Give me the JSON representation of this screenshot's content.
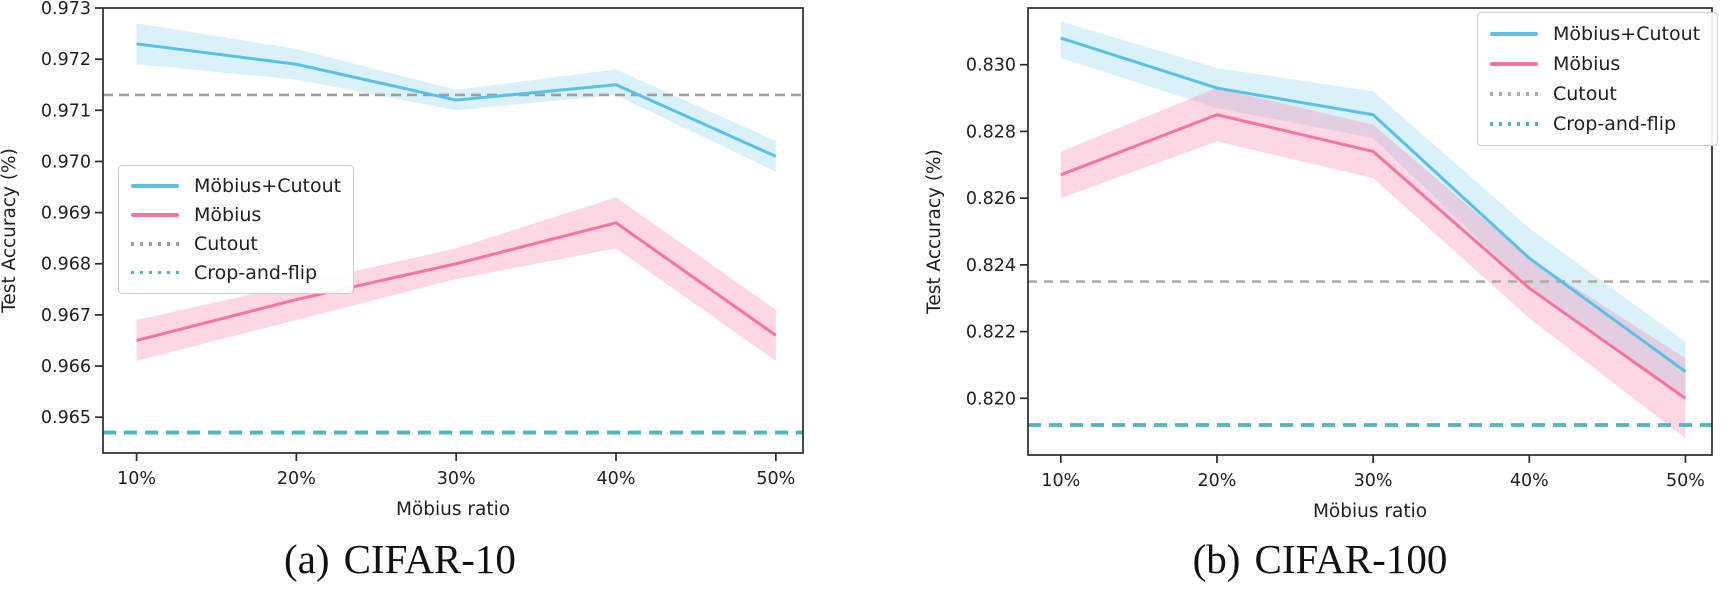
{
  "captions": [
    {
      "index": "(a)",
      "title": "CIFAR-10"
    },
    {
      "index": "(b)",
      "title": "CIFAR-100"
    }
  ],
  "chart_data": [
    {
      "type": "line",
      "title": "(a) CIFAR-10",
      "xlabel": "Möbius ratio",
      "ylabel": "Test Accuracy (%)",
      "x": [
        10,
        20,
        30,
        40,
        50
      ],
      "x_tick_labels": [
        "10%",
        "20%",
        "30%",
        "40%",
        "50%"
      ],
      "xlim": [
        7.9,
        51.7
      ],
      "ylim": [
        0.9643,
        0.973
      ],
      "yticks": [
        0.965,
        0.966,
        0.967,
        0.968,
        0.969,
        0.97,
        0.971,
        0.972,
        0.973
      ],
      "ytick_labels": [
        "0.965",
        "0.966",
        "0.967",
        "0.968",
        "0.969",
        "0.970",
        "0.971",
        "0.972",
        "0.973"
      ],
      "grid": false,
      "legend_position": "center-left",
      "series": [
        {
          "name": "Möbius+Cutout",
          "color": "#58c1e8",
          "band_opacity": 0.22,
          "values": [
            0.9723,
            0.9719,
            0.9712,
            0.9715,
            0.9701
          ],
          "band_high": [
            0.9727,
            0.9722,
            0.9714,
            0.9718,
            0.9704
          ],
          "band_low": [
            0.9719,
            0.9716,
            0.971,
            0.9713,
            0.9698
          ]
        },
        {
          "name": "Möbius",
          "color": "#f8749f",
          "band_opacity": 0.28,
          "values": [
            0.9665,
            0.9673,
            0.968,
            0.9688,
            0.9666
          ],
          "band_high": [
            0.9669,
            0.9676,
            0.9683,
            0.9693,
            0.9671
          ],
          "band_low": [
            0.9661,
            0.9669,
            0.9677,
            0.9683,
            0.9661
          ]
        }
      ],
      "hlines": [
        {
          "name": "Cutout",
          "value": 0.9713,
          "color": "#9e9e9e",
          "dash": "10 6",
          "width": 2.6
        },
        {
          "name": "Crop-and-flip",
          "value": 0.9647,
          "color": "#4cb8ba",
          "dash": "13 8",
          "width": 3.8
        }
      ]
    },
    {
      "type": "line",
      "title": "(b) CIFAR-100",
      "xlabel": "Möbius ratio",
      "ylabel": "Test Accuracy (%)",
      "x": [
        10,
        20,
        30,
        40,
        50
      ],
      "x_tick_labels": [
        "10%",
        "20%",
        "30%",
        "40%",
        "50%"
      ],
      "xlim": [
        7.9,
        51.7
      ],
      "ylim": [
        0.8183,
        0.8317
      ],
      "yticks": [
        0.82,
        0.822,
        0.824,
        0.826,
        0.828,
        0.83
      ],
      "ytick_labels": [
        "0.820",
        "0.822",
        "0.824",
        "0.826",
        "0.828",
        "0.830"
      ],
      "grid": false,
      "legend_position": "top-right",
      "series": [
        {
          "name": "Möbius+Cutout",
          "color": "#58c1e8",
          "band_opacity": 0.22,
          "values": [
            0.8308,
            0.8293,
            0.8285,
            0.8242,
            0.8208
          ],
          "band_high": [
            0.8313,
            0.8299,
            0.8292,
            0.8251,
            0.8217
          ],
          "band_low": [
            0.8302,
            0.8287,
            0.8278,
            0.8233,
            0.8199
          ]
        },
        {
          "name": "Möbius",
          "color": "#f8749f",
          "band_opacity": 0.28,
          "values": [
            0.8267,
            0.8285,
            0.8274,
            0.8233,
            0.82
          ],
          "band_high": [
            0.8274,
            0.8293,
            0.8282,
            0.8242,
            0.8212
          ],
          "band_low": [
            0.826,
            0.8277,
            0.8266,
            0.8224,
            0.8188
          ]
        }
      ],
      "hlines": [
        {
          "name": "Cutout",
          "value": 0.8235,
          "color": "#b3ae9c",
          "dash": "9 7",
          "width": 2.6
        },
        {
          "name": "Crop-and-flip",
          "value": 0.8192,
          "color": "#4cb8ba",
          "dash": "13 8",
          "width": 3.8
        }
      ]
    }
  ]
}
